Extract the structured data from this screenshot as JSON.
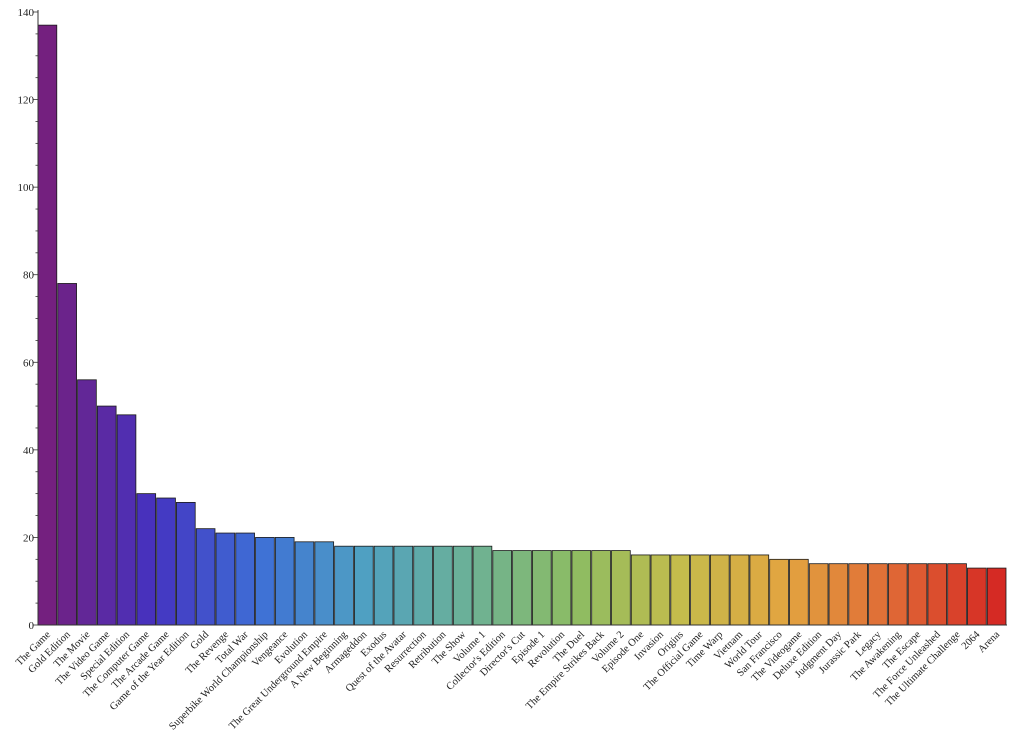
{
  "chart_data": {
    "type": "bar",
    "title": "",
    "xlabel": "",
    "ylabel": "",
    "ylim": [
      0,
      140
    ],
    "yticks": [
      0,
      20,
      40,
      60,
      80,
      100,
      120,
      140
    ],
    "grid": false,
    "categories": [
      "The Game",
      "Gold Edition",
      "The Movie",
      "The Video Game",
      "Special Edition",
      "The Computer Game",
      "The Arcade Game",
      "Game of the Year Edition",
      "Gold",
      "The Revenge",
      "Total War",
      "Superbike World Championship",
      "Vengeance",
      "Evolution",
      "The Great Underground Empire",
      "A New Beginning",
      "Armageddon",
      "Exodus",
      "Quest of the Avatar",
      "Resurrection",
      "Retribution",
      "The Show",
      "Volume 1",
      "Collector's Edition",
      "Director's Cut",
      "Episode 1",
      "Revolution",
      "The Duel",
      "The Empire Strikes Back",
      "Volume 2",
      "Episode One",
      "Invasion",
      "Origins",
      "The Official Game",
      "Time Warp",
      "Vietnam",
      "World Tour",
      "San Francisco",
      "The Videogame",
      "Deluxe Edition",
      "Judgment Day",
      "Jurassic Park",
      "Legacy",
      "The Awakening",
      "The Escape",
      "The Force Unleashed",
      "The Ultimate Challenge",
      "2064",
      "Arena"
    ],
    "values": [
      137,
      78,
      56,
      50,
      48,
      30,
      29,
      28,
      22,
      21,
      21,
      20,
      20,
      19,
      19,
      18,
      18,
      18,
      18,
      18,
      18,
      18,
      18,
      17,
      17,
      17,
      17,
      17,
      17,
      17,
      16,
      16,
      16,
      16,
      16,
      16,
      16,
      15,
      15,
      14,
      14,
      14,
      14,
      14,
      14,
      14,
      14,
      13,
      13
    ],
    "color_scale": [
      "#74207f",
      "#4532c0",
      "#3e6fd6",
      "#4fa0c2",
      "#6cb196",
      "#8dbc62",
      "#c4bc4c",
      "#e2a540",
      "#e06a36",
      "#d52a24"
    ]
  }
}
